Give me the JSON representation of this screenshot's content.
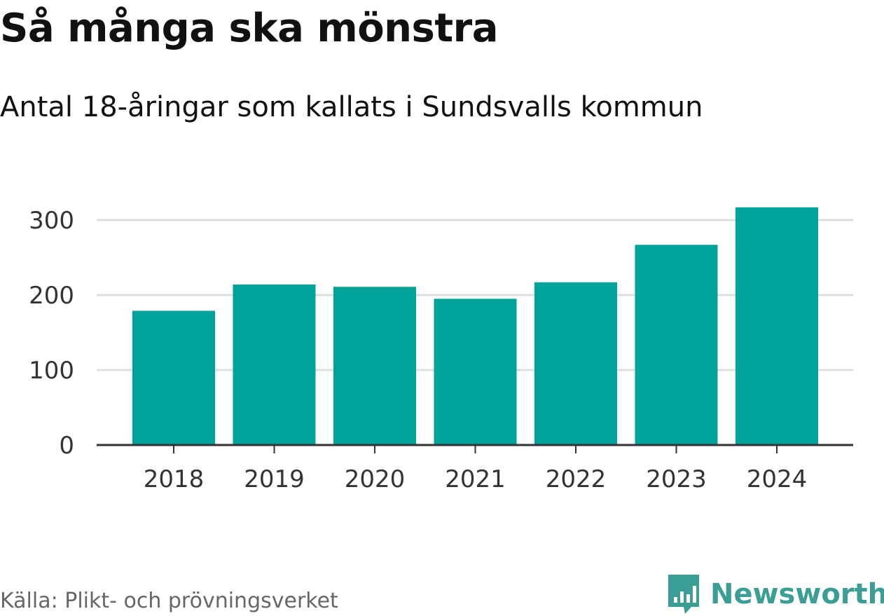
{
  "header": {
    "title": "Så många ska mönstra",
    "subtitle": "Antal 18-åringar som kallats i Sundsvalls kommun"
  },
  "footer": {
    "source": "Källa: Plikt- och prövningsverket",
    "brand": "Newsworthy",
    "brand_icon": "newsworthy-logo-icon"
  },
  "colors": {
    "bar": "#00a39a",
    "grid": "#dddddd",
    "axis": "#333333",
    "brand": "#3a9e95"
  },
  "chart_data": {
    "type": "bar",
    "title": "Så många ska mönstra",
    "subtitle": "Antal 18-åringar som kallats i Sundsvalls kommun",
    "categories": [
      "2018",
      "2019",
      "2020",
      "2021",
      "2022",
      "2023",
      "2024"
    ],
    "values": [
      179,
      214,
      211,
      195,
      217,
      267,
      317
    ],
    "xlabel": "",
    "ylabel": "",
    "ylim": [
      0,
      300
    ],
    "yticks": [
      0,
      100,
      200,
      300
    ],
    "ytick_labels": [
      "0",
      "100",
      "200",
      "300"
    ],
    "grid": true
  }
}
